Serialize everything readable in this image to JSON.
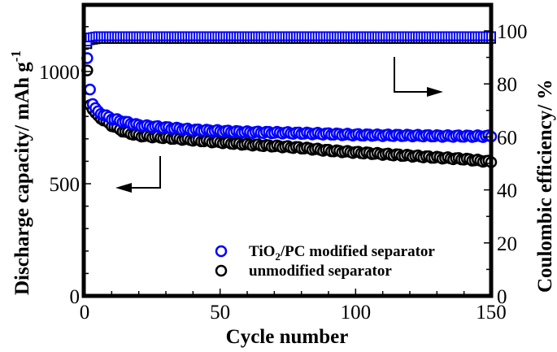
{
  "chart_data": {
    "type": "scatter",
    "title": "",
    "xlabel": "Cycle number",
    "ylabel": "Discharge capacity/ mAh g⁻¹",
    "ylabel_main": "Discharge capacity/ mAh g",
    "ylabel_sup": "-1",
    "y2label": "Coulombic efficiency/ %",
    "xlim": [
      0,
      150
    ],
    "ylim": [
      0,
      1300
    ],
    "y2lim": [
      0,
      110
    ],
    "x_ticks": [
      0,
      50,
      100,
      150
    ],
    "x_tick_labels": [
      "0",
      "50",
      "100",
      "150"
    ],
    "y_ticks": [
      0,
      500,
      1000
    ],
    "y_tick_labels": [
      "0",
      "500",
      "1000"
    ],
    "y2_ticks": [
      0,
      20,
      40,
      60,
      80,
      100
    ],
    "y2_tick_labels": [
      "0",
      "20",
      "40",
      "60",
      "80",
      "100"
    ],
    "grid": false,
    "legend_position": "lower right",
    "annotations": [
      {
        "type": "arrow",
        "direction": "left",
        "meaning": "capacity series read on left axis"
      },
      {
        "type": "arrow",
        "direction": "right",
        "meaning": "efficiency series read on right axis"
      }
    ],
    "series": [
      {
        "name": "TiO2/PC modified separator",
        "quantity": "discharge capacity",
        "axis": "left",
        "marker": "circle-open",
        "color": "#0000ff",
        "x": [
          1,
          2,
          3,
          5,
          10,
          15,
          20,
          30,
          40,
          50,
          60,
          70,
          80,
          90,
          100,
          110,
          120,
          130,
          140,
          150
        ],
        "values": [
          1060,
          920,
          855,
          820,
          790,
          775,
          760,
          750,
          740,
          735,
          730,
          728,
          725,
          722,
          718,
          716,
          715,
          713,
          712,
          712
        ]
      },
      {
        "name": "unmodified separator",
        "quantity": "discharge capacity",
        "axis": "left",
        "marker": "circle-open",
        "color": "#000000",
        "x": [
          1,
          2,
          3,
          5,
          10,
          15,
          20,
          30,
          40,
          50,
          60,
          70,
          80,
          90,
          100,
          110,
          120,
          130,
          140,
          150
        ],
        "values": [
          1005,
          850,
          830,
          800,
          760,
          730,
          715,
          705,
          695,
          685,
          675,
          668,
          660,
          648,
          640,
          632,
          625,
          617,
          610,
          598
        ]
      },
      {
        "name": "TiO2/PC modified separator (efficiency)",
        "quantity": "coulombic efficiency",
        "axis": "right",
        "marker": "square-open",
        "color": "#0000ff",
        "x": [
          1,
          2,
          5,
          10,
          50,
          100,
          150
        ],
        "values": [
          96,
          97.5,
          98,
          98,
          98,
          98,
          98
        ]
      },
      {
        "name": "unmodified separator (efficiency)",
        "quantity": "coulombic efficiency",
        "axis": "right",
        "marker": "square-open",
        "color": "#000000",
        "x": [
          1,
          2,
          5,
          10,
          50,
          100,
          150
        ],
        "values": [
          95,
          96.5,
          97,
          97,
          97,
          97,
          97
        ]
      }
    ]
  },
  "legend": {
    "items": [
      {
        "label_main": "TiO",
        "label_sub": "2",
        "label_rest": "/PC modified separator",
        "color": "#0000ff"
      },
      {
        "label_main": "unmodified separator",
        "label_sub": "",
        "label_rest": "",
        "color": "#000000"
      }
    ]
  }
}
